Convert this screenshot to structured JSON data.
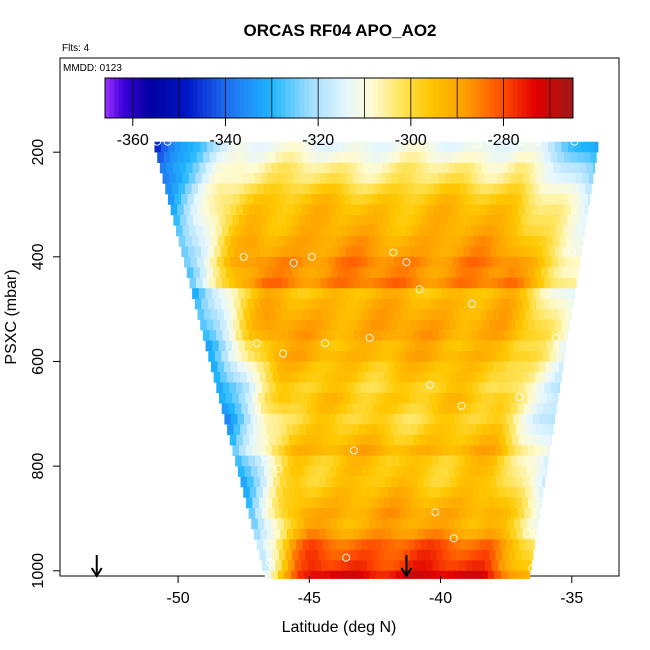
{
  "chart_data": {
    "type": "heatmap",
    "title": "ORCAS RF04 APO_AO2",
    "annotation_flights": "Flts: 4",
    "annotation_date": "MMDD: 0123",
    "xlabel": "Latitude (deg N)",
    "ylabel": "PSXC (mbar)",
    "xlim": [
      -54.5,
      -33.2
    ],
    "ylim": [
      1010,
      20
    ],
    "x_ticks": [
      -50,
      -45,
      -40,
      -35
    ],
    "y_ticks": [
      200,
      400,
      600,
      800,
      1000
    ],
    "grid": false,
    "colorbar": {
      "position": "top",
      "range": [
        -366,
        -265
      ],
      "ticks": [
        -360,
        -340,
        -320,
        -300,
        -280
      ],
      "stops": [
        {
          "v": -366,
          "c": "#9b30ff"
        },
        {
          "v": -362,
          "c": "#3a00d8"
        },
        {
          "v": -356,
          "c": "#0000a0"
        },
        {
          "v": -348,
          "c": "#0018c8"
        },
        {
          "v": -340,
          "c": "#1f6cf0"
        },
        {
          "v": -330,
          "c": "#1fb6ff"
        },
        {
          "v": -322,
          "c": "#9ddcff"
        },
        {
          "v": -314,
          "c": "#e6f7ff"
        },
        {
          "v": -308,
          "c": "#fffbd0"
        },
        {
          "v": -302,
          "c": "#ffe45a"
        },
        {
          "v": -296,
          "c": "#ffc800"
        },
        {
          "v": -288,
          "c": "#ff9c00"
        },
        {
          "v": -280,
          "c": "#ff4a00"
        },
        {
          "v": -273,
          "c": "#e00000"
        },
        {
          "v": -265,
          "c": "#a01818"
        }
      ]
    },
    "pressure_levels": [
      180,
      200,
      220,
      240,
      260,
      280,
      300,
      320,
      340,
      360,
      380,
      400,
      420,
      440,
      460,
      480,
      500,
      520,
      540,
      560,
      580,
      600,
      620,
      640,
      660,
      680,
      700,
      720,
      740,
      760,
      780,
      800,
      820,
      840,
      860,
      880,
      900,
      920,
      940,
      960,
      980,
      1000
    ],
    "band_values": [
      -312,
      -309,
      -305,
      -303,
      -299,
      -296,
      -294,
      -293,
      -292,
      -290,
      -289,
      -286,
      -287,
      -285,
      -294,
      -292,
      -291,
      -290,
      -290,
      -293,
      -292,
      -295,
      -296,
      -298,
      -296,
      -297,
      -299,
      -297,
      -295,
      -292,
      -296,
      -296,
      -296,
      -294,
      -292,
      -290,
      -291,
      -288,
      -282,
      -280,
      -278,
      -273
    ],
    "observations": [
      {
        "lat": -50.8,
        "p": 180
      },
      {
        "lat": -50.4,
        "p": 180
      },
      {
        "lat": -38.6,
        "p": 185
      },
      {
        "lat": -38.1,
        "p": 180
      },
      {
        "lat": -37.5,
        "p": 180
      },
      {
        "lat": -36.9,
        "p": 180
      },
      {
        "lat": -36.3,
        "p": 180
      },
      {
        "lat": -34.9,
        "p": 180
      },
      {
        "lat": -47.5,
        "p": 400
      },
      {
        "lat": -45.6,
        "p": 412
      },
      {
        "lat": -44.9,
        "p": 400
      },
      {
        "lat": -41.8,
        "p": 392
      },
      {
        "lat": -41.3,
        "p": 410
      },
      {
        "lat": -40.8,
        "p": 462
      },
      {
        "lat": -38.8,
        "p": 490
      },
      {
        "lat": -35.0,
        "p": 390
      },
      {
        "lat": -47.0,
        "p": 565
      },
      {
        "lat": -46.0,
        "p": 585
      },
      {
        "lat": -44.4,
        "p": 565
      },
      {
        "lat": -42.7,
        "p": 555
      },
      {
        "lat": -35.6,
        "p": 555
      },
      {
        "lat": -40.4,
        "p": 645
      },
      {
        "lat": -39.2,
        "p": 685
      },
      {
        "lat": -37.0,
        "p": 668
      },
      {
        "lat": -46.7,
        "p": 780
      },
      {
        "lat": -46.2,
        "p": 805
      },
      {
        "lat": -43.3,
        "p": 770
      },
      {
        "lat": -40.2,
        "p": 888
      },
      {
        "lat": -39.5,
        "p": 938
      },
      {
        "lat": -36.7,
        "p": 928
      },
      {
        "lat": -46.5,
        "p": 985
      },
      {
        "lat": -43.6,
        "p": 975
      },
      {
        "lat": -36.5,
        "p": 995
      }
    ],
    "arrows": [
      {
        "lat": -53.1
      },
      {
        "lat": -41.3
      }
    ]
  }
}
